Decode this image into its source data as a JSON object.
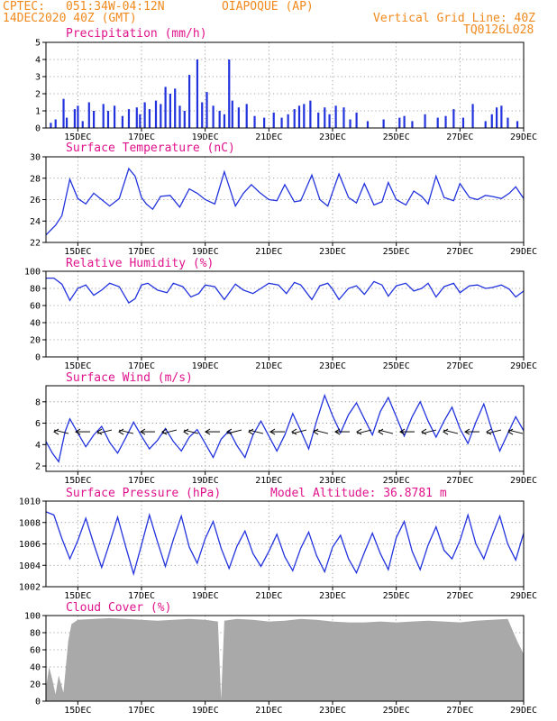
{
  "header": {
    "org": "CPTEC:",
    "coords": "051:34W-04:12N",
    "station": "OIAPOQUE (AP)",
    "date": "14DEC2020 40Z (GMT)",
    "grid_note": "Vertical Grid Line: 40Z",
    "code": "TQ0126L028"
  },
  "colors": {
    "header": "#f08a1e",
    "titles": "#e0138c",
    "series": "#2233dd",
    "cloud": "#a9a9a9"
  },
  "x_tick_labels": [
    "15DEC",
    "17DEC",
    "19DEC",
    "21DEC",
    "23DEC",
    "25DEC",
    "27DEC",
    "29DEC"
  ],
  "chart_data": [
    {
      "type": "bar",
      "title": "Precipitation (mm/h)",
      "ylim": [
        0,
        5
      ],
      "yticks": [
        "0",
        "1",
        "2",
        "3",
        "4",
        "5"
      ],
      "x": [
        14.15,
        14.3,
        14.55,
        14.65,
        14.9,
        15.0,
        15.15,
        15.35,
        15.5,
        15.8,
        15.95,
        16.15,
        16.4,
        16.6,
        16.85,
        16.95,
        17.1,
        17.25,
        17.45,
        17.6,
        17.75,
        17.9,
        18.05,
        18.2,
        18.35,
        18.5,
        18.75,
        18.9,
        19.05,
        19.25,
        19.45,
        19.6,
        19.75,
        19.85,
        20.05,
        20.3,
        20.55,
        20.85,
        21.15,
        21.4,
        21.6,
        21.8,
        21.95,
        22.1,
        22.3,
        22.55,
        22.75,
        22.9,
        23.1,
        23.35,
        23.55,
        23.75,
        24.1,
        24.6,
        25.1,
        25.25,
        25.5,
        25.9,
        26.3,
        26.55,
        26.8,
        27.1,
        27.4,
        27.8,
        28.0,
        28.15,
        28.3,
        28.5,
        28.8
      ],
      "values": [
        0.3,
        0.5,
        1.7,
        0.6,
        1.1,
        1.3,
        0.4,
        1.5,
        1.0,
        1.4,
        1.0,
        1.3,
        0.7,
        1.1,
        1.2,
        0.8,
        1.5,
        1.1,
        1.6,
        1.4,
        2.4,
        2.0,
        2.3,
        1.3,
        1.0,
        3.1,
        4.0,
        1.5,
        2.1,
        1.3,
        1.0,
        0.8,
        4.0,
        1.6,
        1.2,
        1.4,
        0.7,
        0.6,
        0.9,
        0.6,
        0.8,
        1.1,
        1.3,
        1.4,
        1.6,
        0.9,
        1.2,
        0.8,
        1.3,
        1.2,
        0.5,
        0.9,
        0.4,
        0.5,
        0.6,
        0.7,
        0.4,
        0.8,
        0.6,
        0.7,
        1.1,
        0.6,
        1.4,
        0.4,
        0.8,
        1.2,
        1.3,
        0.6,
        0.4
      ]
    },
    {
      "type": "line",
      "title": "Surface Temperature (nC)",
      "ylim": [
        22,
        30
      ],
      "yticks": [
        "22",
        "24",
        "26",
        "28",
        "30"
      ],
      "x": [
        14.0,
        14.3,
        14.5,
        14.75,
        15.0,
        15.25,
        15.5,
        15.75,
        16.0,
        16.3,
        16.6,
        16.8,
        17.0,
        17.15,
        17.35,
        17.6,
        17.9,
        18.2,
        18.5,
        18.75,
        19.0,
        19.3,
        19.6,
        19.95,
        20.2,
        20.45,
        20.7,
        21.0,
        21.25,
        21.5,
        21.8,
        22.0,
        22.35,
        22.6,
        22.85,
        23.0,
        23.2,
        23.5,
        23.75,
        24.0,
        24.3,
        24.55,
        24.75,
        25.0,
        25.3,
        25.55,
        25.8,
        26.0,
        26.25,
        26.5,
        26.8,
        27.0,
        27.3,
        27.55,
        27.8,
        28.0,
        28.3,
        28.55,
        28.75,
        29.0
      ],
      "values": [
        22.7,
        23.6,
        24.5,
        27.9,
        26.1,
        25.6,
        26.6,
        26.0,
        25.4,
        26.1,
        28.9,
        28.2,
        26.2,
        25.6,
        25.1,
        26.3,
        26.4,
        25.3,
        27.0,
        26.6,
        26.0,
        25.6,
        28.6,
        25.4,
        26.6,
        27.4,
        26.7,
        26.0,
        25.9,
        27.4,
        25.8,
        25.9,
        28.3,
        26.0,
        25.4,
        26.7,
        28.4,
        26.2,
        25.7,
        27.5,
        25.5,
        25.8,
        27.6,
        26.0,
        25.5,
        26.8,
        26.3,
        25.6,
        28.2,
        26.2,
        25.9,
        27.5,
        26.2,
        26.0,
        26.4,
        26.3,
        26.1,
        26.6,
        27.2,
        26.1
      ]
    },
    {
      "type": "line",
      "title": "Relative Humidity (%)",
      "ylim": [
        0,
        100
      ],
      "yticks": [
        "0",
        "20",
        "40",
        "60",
        "80",
        "100"
      ],
      "x": [
        14.0,
        14.25,
        14.5,
        14.75,
        15.0,
        15.25,
        15.5,
        15.75,
        16.0,
        16.3,
        16.6,
        16.8,
        17.0,
        17.2,
        17.5,
        17.8,
        18.0,
        18.3,
        18.55,
        18.8,
        19.0,
        19.3,
        19.6,
        19.95,
        20.2,
        20.5,
        20.75,
        21.0,
        21.3,
        21.55,
        21.8,
        22.0,
        22.35,
        22.6,
        22.85,
        23.0,
        23.2,
        23.5,
        23.75,
        24.0,
        24.3,
        24.55,
        24.75,
        25.0,
        25.3,
        25.55,
        25.8,
        26.0,
        26.25,
        26.5,
        26.8,
        27.0,
        27.3,
        27.55,
        27.8,
        28.0,
        28.3,
        28.55,
        28.75,
        29.0
      ],
      "values": [
        92,
        92,
        85,
        66,
        80,
        84,
        72,
        78,
        86,
        82,
        63,
        68,
        84,
        86,
        78,
        75,
        86,
        82,
        70,
        74,
        84,
        82,
        67,
        85,
        78,
        74,
        80,
        86,
        84,
        74,
        87,
        84,
        67,
        83,
        86,
        79,
        67,
        80,
        83,
        73,
        88,
        84,
        71,
        83,
        86,
        77,
        80,
        86,
        70,
        82,
        86,
        75,
        83,
        84,
        80,
        81,
        84,
        79,
        70,
        77
      ]
    },
    {
      "type": "line",
      "title": "Surface Wind (m/s)",
      "ylim": [
        1.5,
        9.5
      ],
      "yticks": [
        "2",
        "4",
        "6",
        "8"
      ],
      "x": [
        14.0,
        14.2,
        14.4,
        14.6,
        14.75,
        15.0,
        15.25,
        15.5,
        15.75,
        16.0,
        16.25,
        16.5,
        16.75,
        17.0,
        17.25,
        17.5,
        17.75,
        18.0,
        18.25,
        18.5,
        18.75,
        19.0,
        19.25,
        19.5,
        19.75,
        20.0,
        20.25,
        20.5,
        20.75,
        21.0,
        21.25,
        21.5,
        21.75,
        22.0,
        22.25,
        22.5,
        22.75,
        23.0,
        23.25,
        23.5,
        23.75,
        24.0,
        24.25,
        24.5,
        24.75,
        25.0,
        25.25,
        25.5,
        25.75,
        26.0,
        26.25,
        26.5,
        26.75,
        27.0,
        27.25,
        27.5,
        27.75,
        28.0,
        28.25,
        28.5,
        28.75,
        29.0
      ],
      "values": [
        4.3,
        3.2,
        2.4,
        5.2,
        6.4,
        5.1,
        3.8,
        4.9,
        5.7,
        4.2,
        3.2,
        4.6,
        6.1,
        4.8,
        3.6,
        4.4,
        5.5,
        4.3,
        3.4,
        4.7,
        5.4,
        4.1,
        2.8,
        4.5,
        5.3,
        3.9,
        2.8,
        4.9,
        6.2,
        4.8,
        3.4,
        4.9,
        6.9,
        5.3,
        3.6,
        6.2,
        8.6,
        6.7,
        5.1,
        6.8,
        7.9,
        6.4,
        4.9,
        7.1,
        8.4,
        6.6,
        4.8,
        6.6,
        8.0,
        6.2,
        4.7,
        6.2,
        7.5,
        5.5,
        4.1,
        6.1,
        7.8,
        5.4,
        3.4,
        5.0,
        6.6,
        5.3
      ]
    },
    {
      "type": "line",
      "title": "Surface Pressure (hPa)",
      "subtitle": "Model Altitude: 36.8781 m",
      "ylim": [
        1002,
        1010
      ],
      "yticks": [
        "1002",
        "1004",
        "1006",
        "1008",
        "1010"
      ],
      "x": [
        14.0,
        14.25,
        14.5,
        14.75,
        15.0,
        15.25,
        15.5,
        15.75,
        16.0,
        16.25,
        16.5,
        16.75,
        17.0,
        17.25,
        17.5,
        17.75,
        18.0,
        18.25,
        18.5,
        18.75,
        19.0,
        19.25,
        19.5,
        19.75,
        20.0,
        20.25,
        20.5,
        20.75,
        21.0,
        21.25,
        21.5,
        21.75,
        22.0,
        22.25,
        22.5,
        22.75,
        23.0,
        23.25,
        23.5,
        23.75,
        24.0,
        24.25,
        24.5,
        24.75,
        25.0,
        25.25,
        25.5,
        25.75,
        26.0,
        26.25,
        26.5,
        26.75,
        27.0,
        27.25,
        27.5,
        27.75,
        28.0,
        28.25,
        28.5,
        28.75,
        29.0
      ],
      "values": [
        1009.0,
        1008.7,
        1006.5,
        1004.6,
        1006.3,
        1008.4,
        1006.0,
        1003.8,
        1006.1,
        1008.5,
        1005.8,
        1003.2,
        1005.9,
        1008.7,
        1006.2,
        1003.9,
        1006.4,
        1008.6,
        1005.7,
        1004.2,
        1006.5,
        1008.1,
        1005.6,
        1003.7,
        1005.8,
        1007.2,
        1005.1,
        1003.9,
        1005.3,
        1006.9,
        1004.8,
        1003.5,
        1005.6,
        1007.1,
        1004.9,
        1003.4,
        1005.7,
        1006.8,
        1004.6,
        1003.3,
        1005.2,
        1007.0,
        1005.1,
        1003.6,
        1006.6,
        1008.1,
        1005.3,
        1003.6,
        1005.9,
        1007.6,
        1005.4,
        1004.6,
        1006.3,
        1008.7,
        1006.0,
        1004.6,
        1006.7,
        1008.6,
        1006.0,
        1004.5,
        1007.0
      ]
    },
    {
      "type": "area",
      "title": "Cloud Cover (%)",
      "ylim": [
        0,
        100
      ],
      "yticks": [
        "0",
        "20",
        "40",
        "60",
        "80",
        "100"
      ],
      "x": [
        14.0,
        14.1,
        14.2,
        14.3,
        14.4,
        14.55,
        14.7,
        14.8,
        15.0,
        15.5,
        16.0,
        16.5,
        17.0,
        17.5,
        18.0,
        18.5,
        19.0,
        19.4,
        19.5,
        19.6,
        20.0,
        20.5,
        21.0,
        21.5,
        22.0,
        22.5,
        23.0,
        23.5,
        24.0,
        24.5,
        25.0,
        25.5,
        26.0,
        26.5,
        27.0,
        27.5,
        28.0,
        28.5,
        28.8,
        29.0
      ],
      "values": [
        15,
        40,
        25,
        8,
        30,
        10,
        70,
        90,
        95,
        96,
        97,
        96,
        95,
        94,
        95,
        96,
        95,
        93,
        2,
        94,
        96,
        95,
        93,
        94,
        96,
        95,
        93,
        92,
        92,
        93,
        92,
        93,
        94,
        93,
        92,
        94,
        95,
        96,
        70,
        55
      ]
    }
  ]
}
